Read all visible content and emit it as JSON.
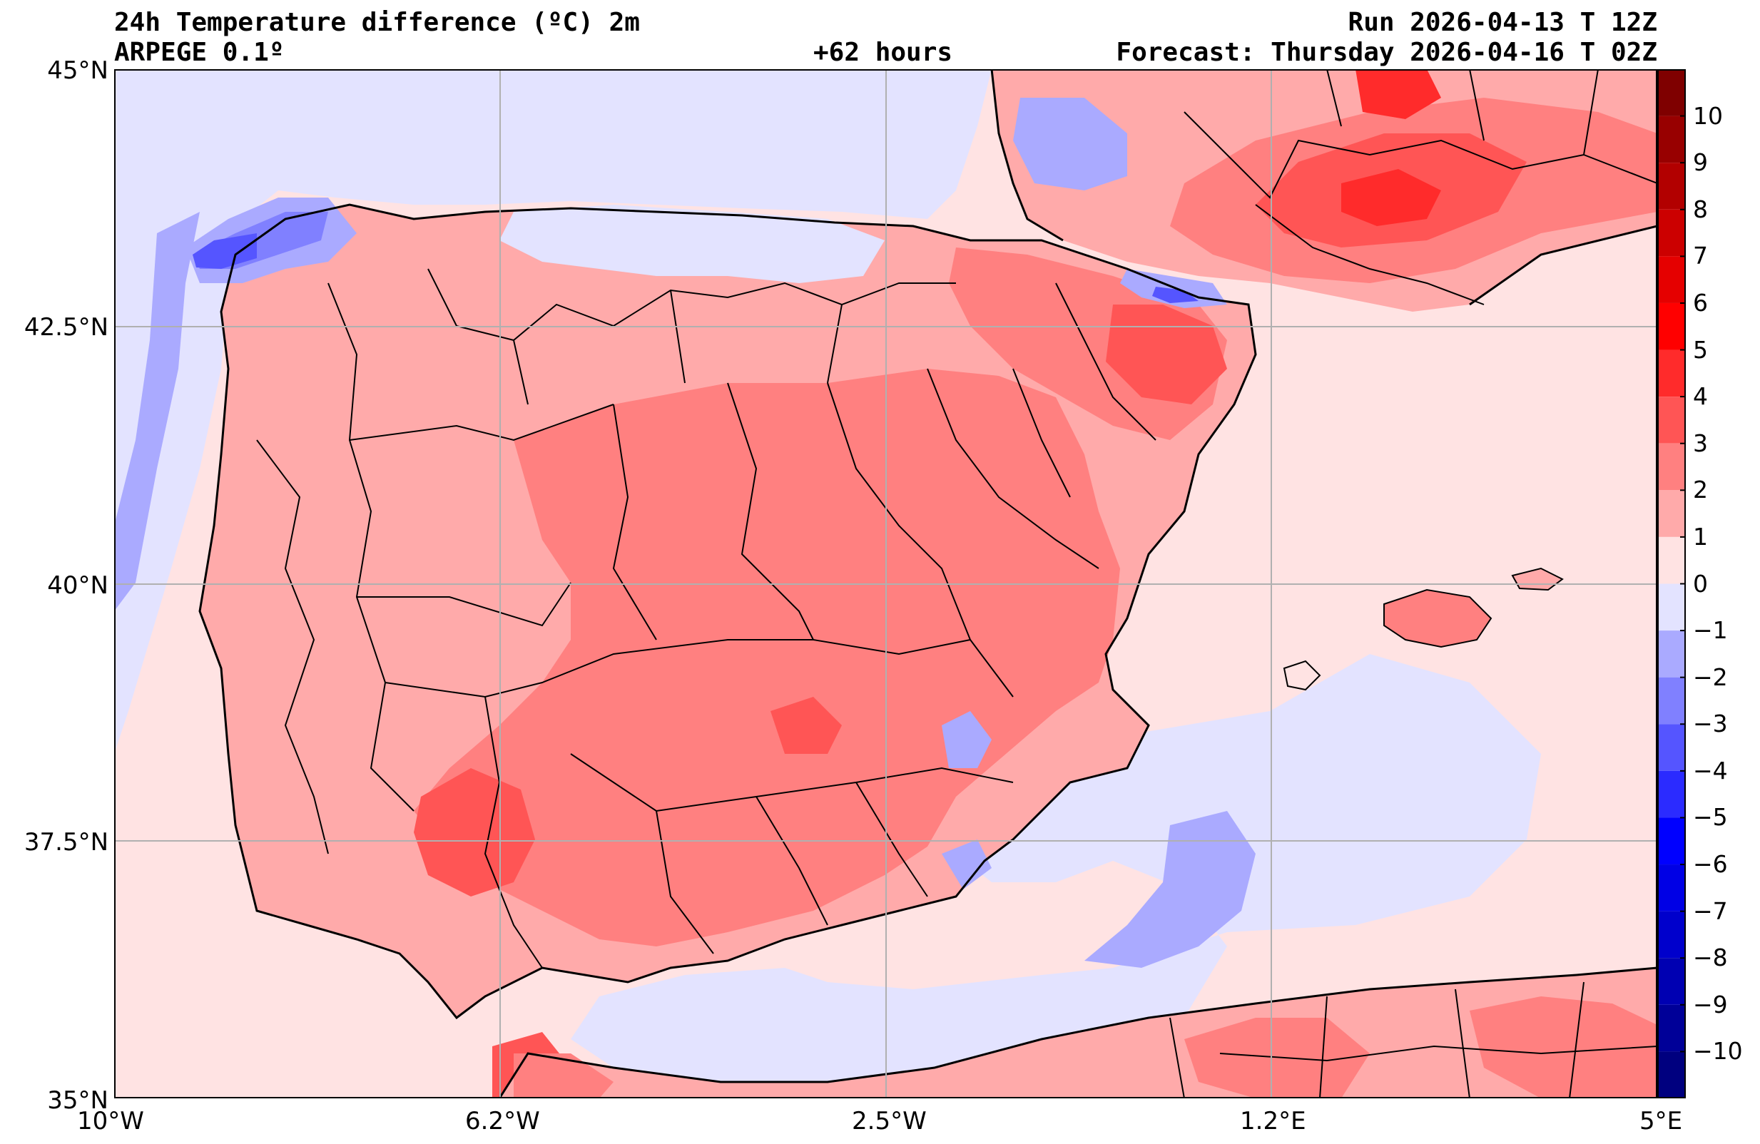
{
  "header": {
    "title_line1": "24h Temperature difference (ºC) 2m",
    "title_line2": "ARPEGE 0.1º",
    "lead_time": "+62 hours",
    "run": "Run 2026-04-13 T 12Z",
    "forecast": "Forecast: Thursday 2026-04-16 T 02Z"
  },
  "axes": {
    "lat_labels": [
      "45°N",
      "42.5°N",
      "40°N",
      "37.5°N",
      "35°N"
    ],
    "lon_labels": [
      "10°W",
      "6.2°W",
      "2.5°W",
      "1.2°E",
      "5°E"
    ],
    "lat_values": [
      45,
      42.5,
      40,
      37.5,
      35
    ],
    "lon_values": [
      -10,
      -6.25,
      -2.5,
      1.25,
      5
    ],
    "lon_range": [
      -10,
      5
    ],
    "lat_range": [
      35,
      45
    ]
  },
  "colorbar": {
    "labels": [
      "10",
      "9",
      "8",
      "7",
      "6",
      "5",
      "4",
      "3",
      "2",
      "1",
      "0",
      "−1",
      "−2",
      "−3",
      "−4",
      "−5",
      "−6",
      "−7",
      "−8",
      "−9",
      "−10"
    ],
    "levels": [
      11,
      10,
      9,
      8,
      7,
      6,
      5,
      4,
      3,
      2,
      1,
      0,
      -1,
      -2,
      -3,
      -4,
      -5,
      -6,
      -7,
      -8,
      -9,
      -10,
      -11
    ],
    "colors": [
      "#7f0000",
      "#980000",
      "#b20000",
      "#cc0000",
      "#e50000",
      "#ff0000",
      "#ff2b2b",
      "#ff5555",
      "#ff8080",
      "#ffaaaa",
      "#ffe3e3",
      "#e3e3ff",
      "#aaaaff",
      "#8080ff",
      "#5555ff",
      "#2b2bff",
      "#0000ff",
      "#0000e5",
      "#0000cc",
      "#0000b2",
      "#000098",
      "#00007f"
    ]
  },
  "palette": {
    "sea_neutral": "#ffe3e3",
    "sea_cool": "#e3e3ff",
    "warm1": "#ffaaaa",
    "warm2": "#ff8080",
    "warm3": "#ff5555",
    "warm4": "#ff2b2b",
    "cool1": "#aaaaff",
    "cool2": "#8080ff",
    "cool3": "#5555ff"
  }
}
